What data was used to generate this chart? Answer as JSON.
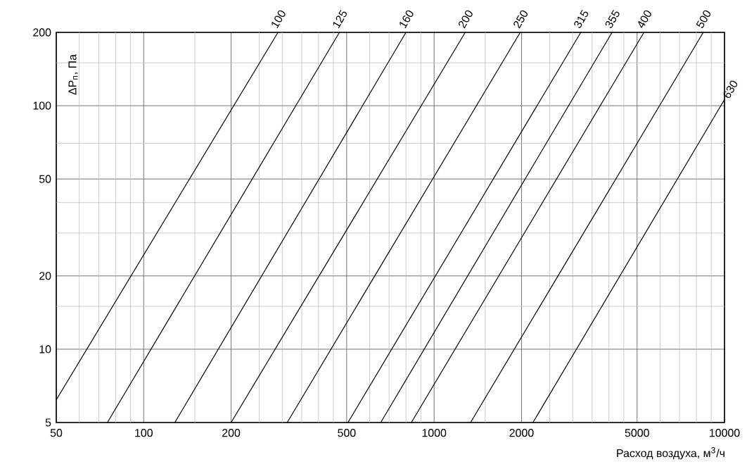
{
  "chart_data": {
    "type": "line",
    "xlabel": "Расход воздуха, м$^{3}$/ч",
    "ylabel": "ΔP$_{п}$, Па",
    "xlim": [
      50,
      10000
    ],
    "ylim": [
      5,
      200
    ],
    "log": "xy",
    "grid": true,
    "xticks": [
      50,
      {
        "value": 60,
        "label": null
      },
      {
        "value": 70,
        "label": null
      },
      {
        "value": 80,
        "label": null
      },
      {
        "value": 90,
        "label": null
      },
      100,
      {
        "value": 150,
        "label": null
      },
      200,
      {
        "value": 250,
        "label": null
      },
      {
        "value": 300,
        "label": null
      },
      {
        "value": 350,
        "label": null
      },
      {
        "value": 400,
        "label": null
      },
      {
        "value": 450,
        "label": null
      },
      500,
      {
        "value": 600,
        "label": null
      },
      {
        "value": 700,
        "label": null
      },
      {
        "value": 800,
        "label": null
      },
      {
        "value": 900,
        "label": null
      },
      1000,
      {
        "value": 1500,
        "label": null
      },
      2000,
      {
        "value": 2500,
        "label": null
      },
      {
        "value": 3000,
        "label": null
      },
      {
        "value": 3500,
        "label": null
      },
      {
        "value": 4000,
        "label": null
      },
      {
        "value": 4500,
        "label": null
      },
      5000,
      {
        "value": 6000,
        "label": null
      },
      {
        "value": 7000,
        "label": null
      },
      {
        "value": 8000,
        "label": null
      },
      {
        "value": 9000,
        "label": null
      },
      10000
    ],
    "yticks": [
      5,
      10,
      {
        "value": 15,
        "label": null
      },
      20,
      {
        "value": 30,
        "label": null
      },
      {
        "value": 40,
        "label": null
      },
      50,
      {
        "value": 70,
        "label": null
      },
      100,
      {
        "value": 150,
        "label": null
      },
      200
    ],
    "series": [
      {
        "name": "100",
        "color": "#000000",
        "x": [
          50,
          290
        ],
        "values": [
          6.2,
          200
        ]
      },
      {
        "name": "125",
        "color": "#000000",
        "x": [
          75,
          472
        ],
        "values": [
          5,
          200
        ]
      },
      {
        "name": "160",
        "color": "#000000",
        "x": [
          128,
          800
        ],
        "values": [
          5,
          200
        ]
      },
      {
        "name": "200",
        "color": "#000000",
        "x": [
          200,
          1280
        ],
        "values": [
          5,
          200
        ]
      },
      {
        "name": "250",
        "color": "#000000",
        "x": [
          312,
          1980
        ],
        "values": [
          5,
          200
        ]
      },
      {
        "name": "315",
        "color": "#000000",
        "x": [
          505,
          3200
        ],
        "values": [
          5,
          200
        ]
      },
      {
        "name": "355",
        "color": "#000000",
        "x": [
          655,
          4100
        ],
        "values": [
          5,
          200
        ]
      },
      {
        "name": "400",
        "color": "#000000",
        "x": [
          835,
          5280
        ],
        "values": [
          5,
          200
        ]
      },
      {
        "name": "500",
        "color": "#000000",
        "x": [
          1335,
          8450
        ],
        "values": [
          5,
          200
        ]
      },
      {
        "name": "630",
        "color": "#000000",
        "x": [
          2190,
          10000
        ],
        "values": [
          5,
          106
        ]
      }
    ]
  }
}
